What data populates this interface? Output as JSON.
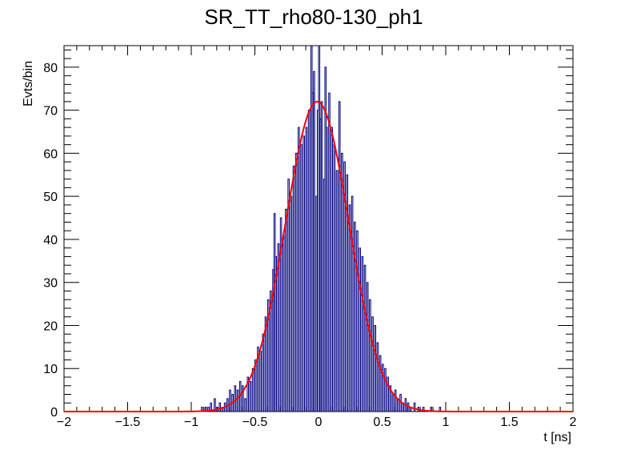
{
  "chart_data": {
    "type": "histogram",
    "title": "SR_TT_rho80-130_ph1",
    "xlabel": "t [ns]",
    "ylabel": "Evts/bin",
    "xlim": [
      -2,
      2
    ],
    "ylim": [
      0,
      85
    ],
    "grid": false,
    "legend": "none",
    "x_ticks": [
      -2,
      -1.5,
      -1,
      -0.5,
      0,
      0.5,
      1,
      1.5,
      2
    ],
    "x_tick_labels": [
      "−2",
      "−1.5",
      "−1",
      "−0.5",
      "0",
      "0.5",
      "1",
      "1.5",
      "2"
    ],
    "y_ticks": [
      0,
      10,
      20,
      30,
      40,
      50,
      60,
      70,
      80
    ],
    "y_tick_labels": [
      "0",
      "10",
      "20",
      "30",
      "40",
      "50",
      "60",
      "70",
      "80"
    ],
    "bin_width": 0.01,
    "series": [
      {
        "kind": "histogram",
        "color": "#000080",
        "bins": [
          {
            "x": -0.92,
            "y": 1
          },
          {
            "x": -0.89,
            "y": 1
          },
          {
            "x": -0.87,
            "y": 1
          },
          {
            "x": -0.85,
            "y": 2
          },
          {
            "x": -0.82,
            "y": 3
          },
          {
            "x": -0.8,
            "y": 1
          },
          {
            "x": -0.78,
            "y": 2
          },
          {
            "x": -0.76,
            "y": 1
          },
          {
            "x": -0.74,
            "y": 2
          },
          {
            "x": -0.72,
            "y": 3
          },
          {
            "x": -0.7,
            "y": 5
          },
          {
            "x": -0.68,
            "y": 4
          },
          {
            "x": -0.66,
            "y": 6
          },
          {
            "x": -0.64,
            "y": 5
          },
          {
            "x": -0.62,
            "y": 7
          },
          {
            "x": -0.6,
            "y": 6
          },
          {
            "x": -0.58,
            "y": 3
          },
          {
            "x": -0.56,
            "y": 8
          },
          {
            "x": -0.54,
            "y": 7
          },
          {
            "x": -0.52,
            "y": 10
          },
          {
            "x": -0.5,
            "y": 12
          },
          {
            "x": -0.48,
            "y": 15
          },
          {
            "x": -0.46,
            "y": 14
          },
          {
            "x": -0.44,
            "y": 18
          },
          {
            "x": -0.42,
            "y": 22
          },
          {
            "x": -0.4,
            "y": 26
          },
          {
            "x": -0.38,
            "y": 28
          },
          {
            "x": -0.36,
            "y": 33
          },
          {
            "x": -0.35,
            "y": 46
          },
          {
            "x": -0.34,
            "y": 36
          },
          {
            "x": -0.32,
            "y": 39
          },
          {
            "x": -0.3,
            "y": 45
          },
          {
            "x": -0.28,
            "y": 41
          },
          {
            "x": -0.26,
            "y": 47
          },
          {
            "x": -0.24,
            "y": 54
          },
          {
            "x": -0.22,
            "y": 50
          },
          {
            "x": -0.2,
            "y": 57
          },
          {
            "x": -0.18,
            "y": 60
          },
          {
            "x": -0.16,
            "y": 66
          },
          {
            "x": -0.14,
            "y": 62
          },
          {
            "x": -0.12,
            "y": 64
          },
          {
            "x": -0.1,
            "y": 66
          },
          {
            "x": -0.08,
            "y": 70
          },
          {
            "x": -0.06,
            "y": 85
          },
          {
            "x": -0.05,
            "y": 74
          },
          {
            "x": -0.04,
            "y": 79
          },
          {
            "x": -0.02,
            "y": 50
          },
          {
            "x": -0.01,
            "y": 70
          },
          {
            "x": 0.0,
            "y": 87
          },
          {
            "x": 0.01,
            "y": 68
          },
          {
            "x": 0.02,
            "y": 72
          },
          {
            "x": 0.04,
            "y": 54
          },
          {
            "x": 0.05,
            "y": 80
          },
          {
            "x": 0.06,
            "y": 66
          },
          {
            "x": 0.08,
            "y": 74
          },
          {
            "x": 0.1,
            "y": 66
          },
          {
            "x": 0.12,
            "y": 62
          },
          {
            "x": 0.14,
            "y": 56
          },
          {
            "x": 0.16,
            "y": 72
          },
          {
            "x": 0.18,
            "y": 60
          },
          {
            "x": 0.2,
            "y": 58
          },
          {
            "x": 0.22,
            "y": 55
          },
          {
            "x": 0.24,
            "y": 48
          },
          {
            "x": 0.26,
            "y": 50
          },
          {
            "x": 0.28,
            "y": 44
          },
          {
            "x": 0.3,
            "y": 42
          },
          {
            "x": 0.32,
            "y": 38
          },
          {
            "x": 0.34,
            "y": 36
          },
          {
            "x": 0.36,
            "y": 34
          },
          {
            "x": 0.38,
            "y": 30
          },
          {
            "x": 0.4,
            "y": 26
          },
          {
            "x": 0.42,
            "y": 22
          },
          {
            "x": 0.44,
            "y": 20
          },
          {
            "x": 0.46,
            "y": 16
          },
          {
            "x": 0.48,
            "y": 13
          },
          {
            "x": 0.5,
            "y": 11
          },
          {
            "x": 0.52,
            "y": 10
          },
          {
            "x": 0.54,
            "y": 8
          },
          {
            "x": 0.56,
            "y": 6
          },
          {
            "x": 0.58,
            "y": 4
          },
          {
            "x": 0.6,
            "y": 5
          },
          {
            "x": 0.62,
            "y": 3
          },
          {
            "x": 0.64,
            "y": 4
          },
          {
            "x": 0.66,
            "y": 2
          },
          {
            "x": 0.68,
            "y": 3
          },
          {
            "x": 0.7,
            "y": 2
          },
          {
            "x": 0.72,
            "y": 1
          },
          {
            "x": 0.75,
            "y": 2
          },
          {
            "x": 0.78,
            "y": 1
          },
          {
            "x": 0.82,
            "y": 1
          },
          {
            "x": 0.88,
            "y": 1
          },
          {
            "x": 0.95,
            "y": 1
          }
        ]
      },
      {
        "kind": "gaussian-fit",
        "color": "#ff0000",
        "amplitude": 72,
        "mean": -0.01,
        "sigma": 0.25
      }
    ]
  }
}
